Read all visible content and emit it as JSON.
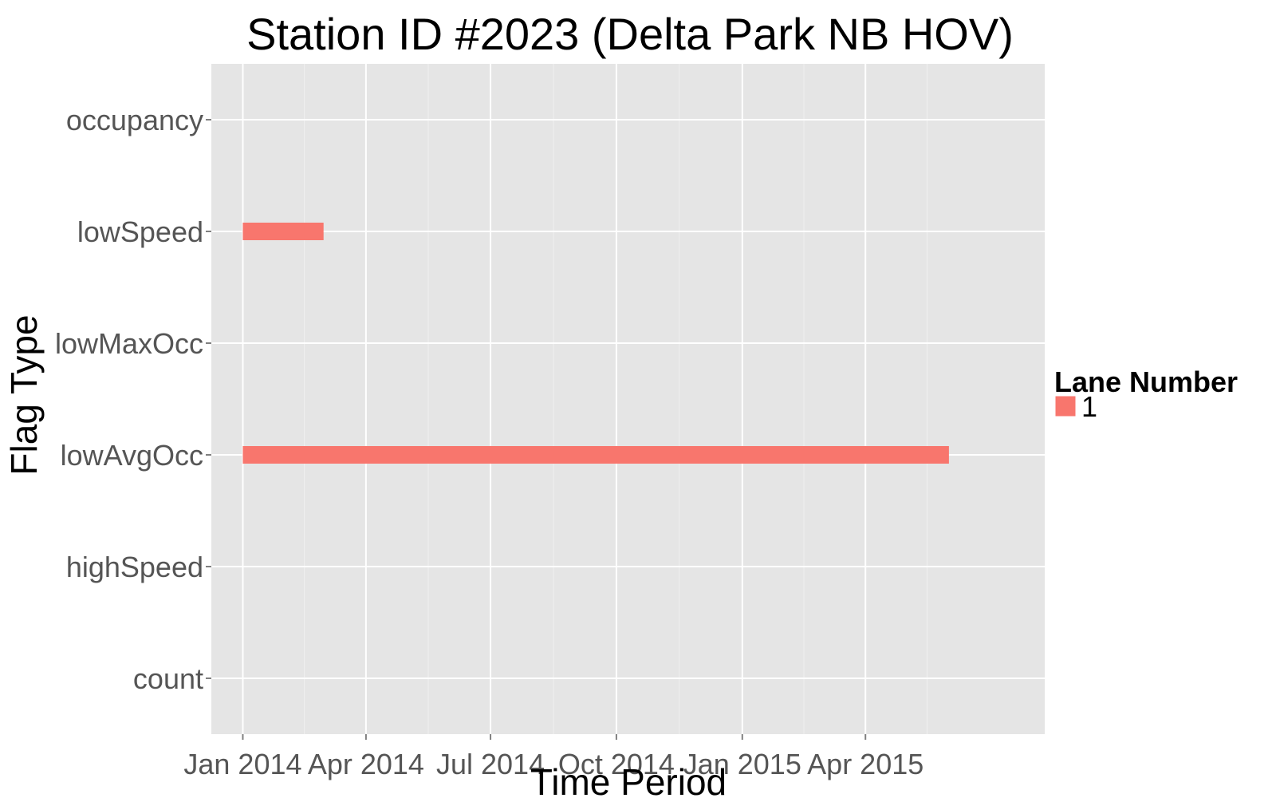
{
  "chart_data": {
    "type": "bar",
    "orientation": "horizontal-timeline",
    "title": "Station ID #2023 (Delta Park NB HOV)",
    "xlabel": "Time Period",
    "ylabel": "Flag Type",
    "categories": [
      "occupancy",
      "lowSpeed",
      "lowMaxOcc",
      "lowAvgOcc",
      "highSpeed",
      "count"
    ],
    "xlim": [
      "2013-12-09",
      "2015-08-10"
    ],
    "x_ticks": [
      {
        "date": "2014-01-01",
        "label": "Jan 2014"
      },
      {
        "date": "2014-04-01",
        "label": "Apr 2014"
      },
      {
        "date": "2014-07-01",
        "label": "Jul 2014"
      },
      {
        "date": "2014-10-01",
        "label": "Oct 2014"
      },
      {
        "date": "2015-01-01",
        "label": "Jan 2015"
      },
      {
        "date": "2015-04-01",
        "label": "Apr 2015"
      }
    ],
    "series": [
      {
        "name": "1",
        "color": "#F8766D",
        "segments": [
          {
            "category": "lowSpeed",
            "start": "2014-01-01",
            "end": "2014-03-01"
          },
          {
            "category": "lowAvgOcc",
            "start": "2014-01-01",
            "end": "2015-06-01"
          }
        ]
      }
    ],
    "legend": {
      "title": "Lane Number",
      "position": "right"
    },
    "grid": true
  }
}
